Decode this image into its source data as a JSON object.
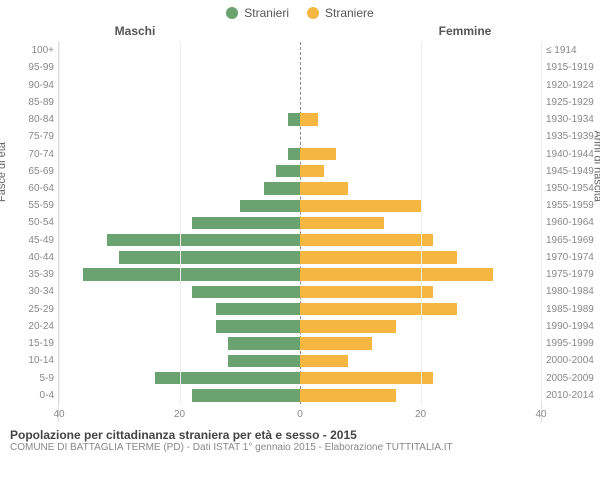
{
  "legend": {
    "male_label": "Stranieri",
    "female_label": "Straniere"
  },
  "colors": {
    "male": "#6aa36f",
    "female": "#f5b742",
    "grid": "#eeeeee",
    "center": "#888888",
    "background": "#ffffff"
  },
  "headers": {
    "male": "Maschi",
    "female": "Femmine"
  },
  "ylabels": {
    "left": "Fasce di età",
    "right": "Anni di nascita"
  },
  "title": "Popolazione per cittadinanza straniera per età e sesso - 2015",
  "source": "COMUNE DI BATTAGLIA TERME (PD) - Dati ISTAT 1° gennaio 2015 - Elaborazione TUTTITALIA.IT",
  "chart": {
    "type": "population-pyramid",
    "xmax": 40,
    "xticks": [
      40,
      20,
      0,
      20,
      40
    ],
    "age_brackets": [
      "100+",
      "95-99",
      "90-94",
      "85-89",
      "80-84",
      "75-79",
      "70-74",
      "65-69",
      "60-64",
      "55-59",
      "50-54",
      "45-49",
      "40-44",
      "35-39",
      "30-34",
      "25-29",
      "20-24",
      "15-19",
      "10-14",
      "5-9",
      "0-4"
    ],
    "birth_years": [
      "≤ 1914",
      "1915-1919",
      "1920-1924",
      "1925-1929",
      "1930-1934",
      "1935-1939",
      "1940-1944",
      "1945-1949",
      "1950-1954",
      "1955-1959",
      "1960-1964",
      "1965-1969",
      "1970-1974",
      "1975-1979",
      "1980-1984",
      "1985-1989",
      "1990-1994",
      "1995-1999",
      "2000-2004",
      "2005-2009",
      "2010-2014"
    ],
    "male": [
      0,
      0,
      0,
      0,
      2,
      0,
      2,
      4,
      6,
      10,
      18,
      32,
      30,
      36,
      18,
      14,
      14,
      12,
      12,
      24,
      18
    ],
    "female": [
      0,
      0,
      0,
      0,
      3,
      0,
      6,
      4,
      8,
      20,
      14,
      22,
      26,
      32,
      22,
      26,
      16,
      12,
      8,
      22,
      16
    ]
  }
}
